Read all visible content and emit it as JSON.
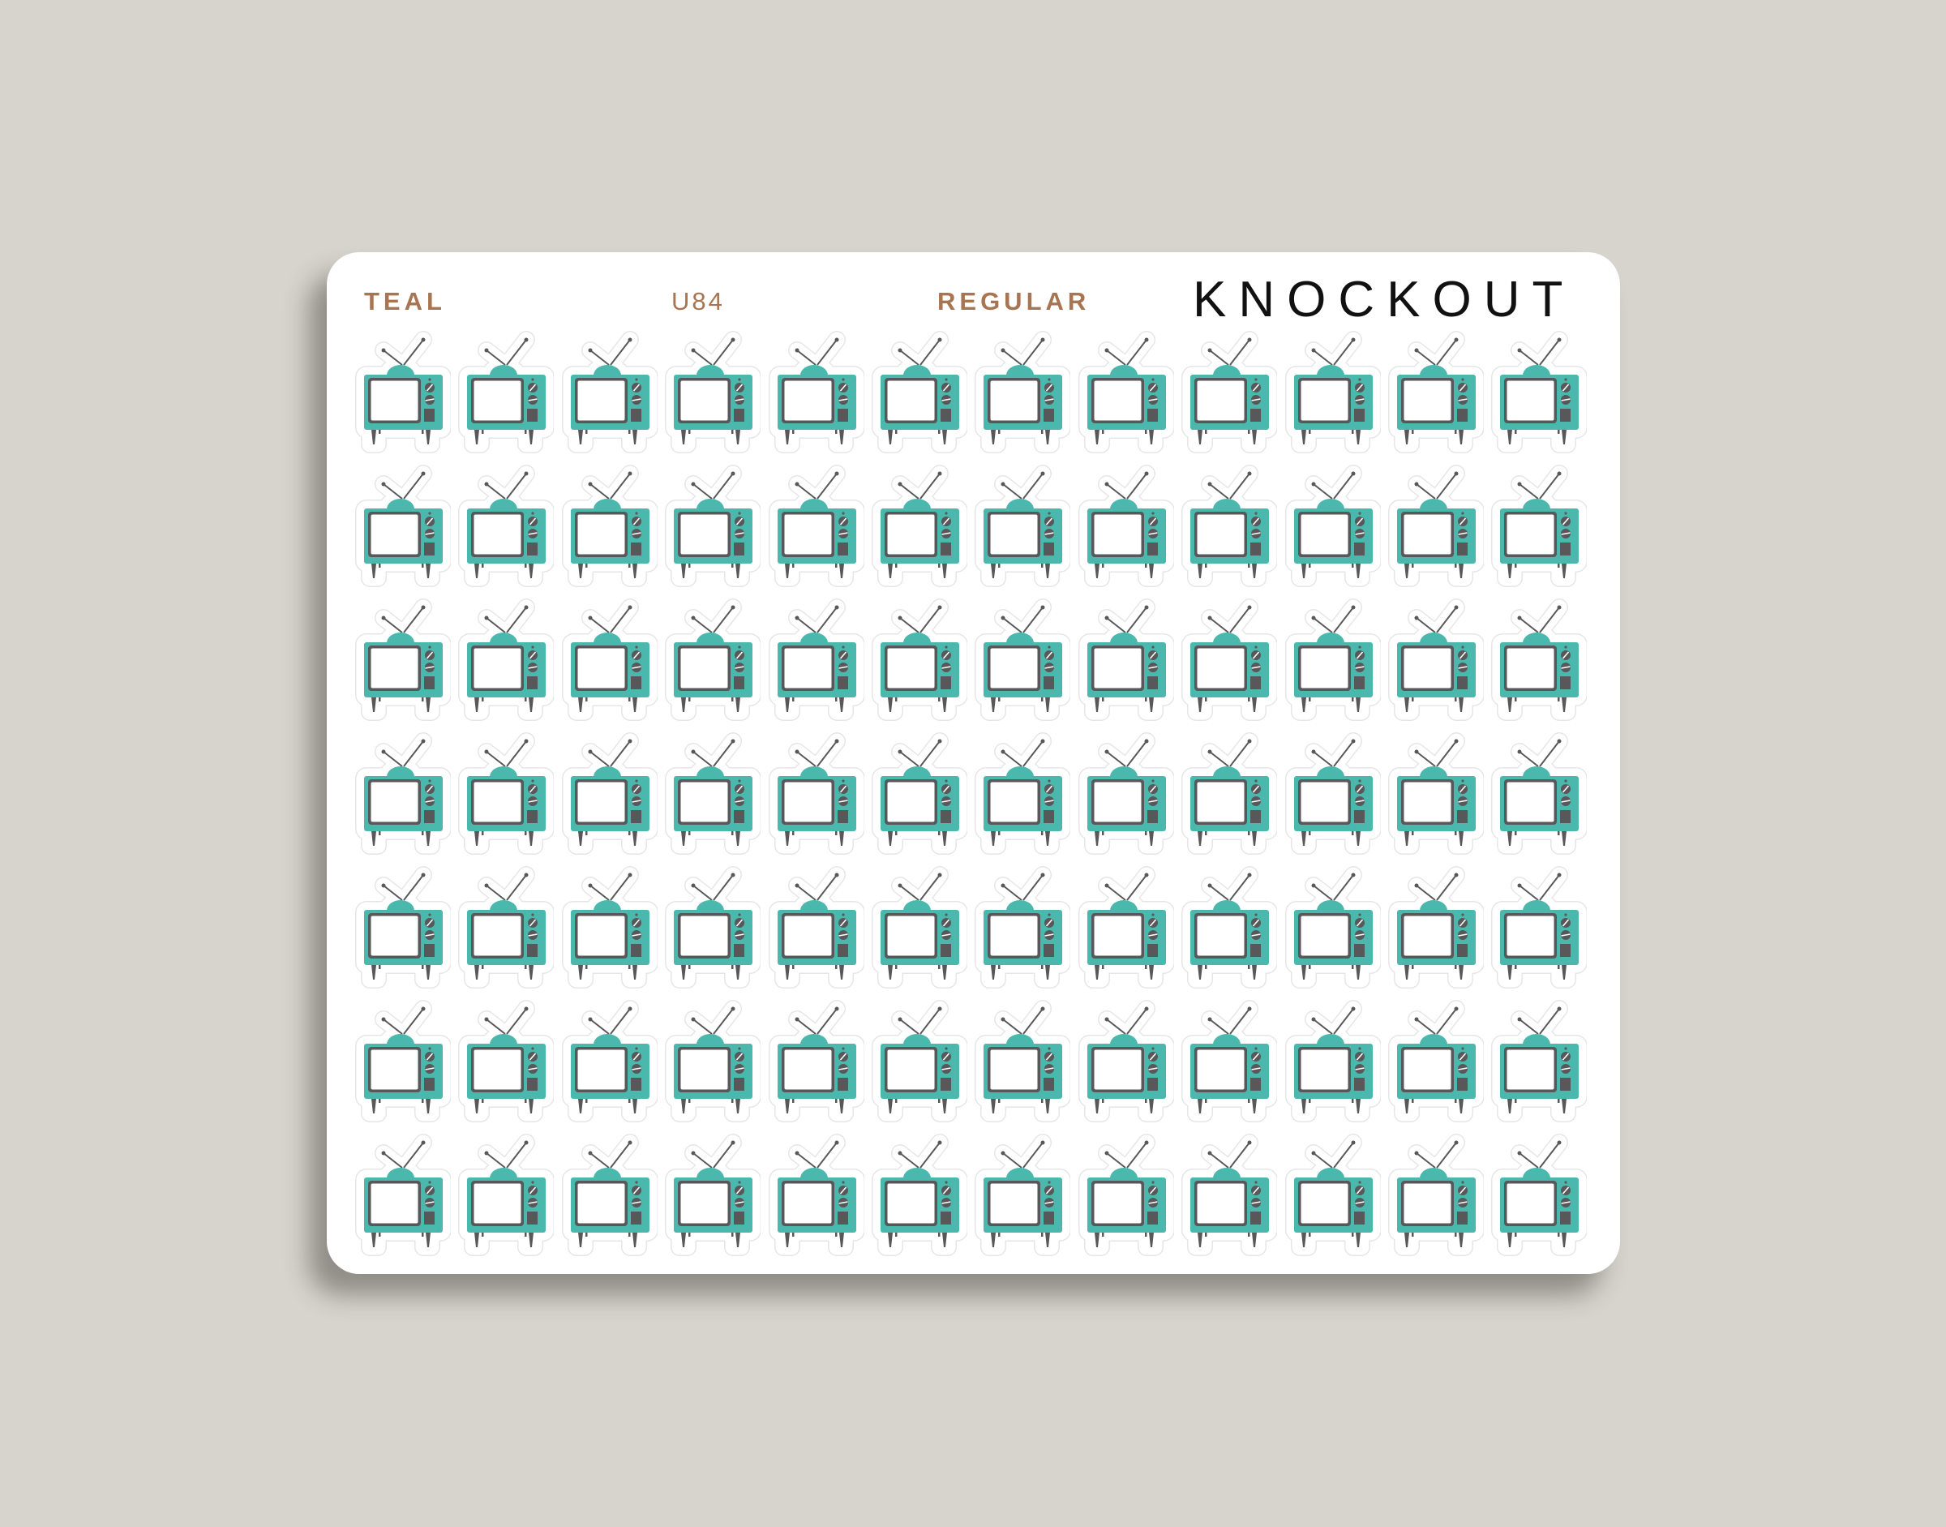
{
  "sheet": {
    "color_name": "TEAL",
    "code": "U84",
    "size": "REGULAR",
    "brand": "KNOCKOUT"
  },
  "grid": {
    "rows": 7,
    "cols": 12,
    "icon": "retro-tv-icon"
  },
  "colors": {
    "background": "#d7d3cd",
    "teal": "#4ab8ad",
    "dark_gray": "#58585a",
    "label_brown": "#a87552"
  }
}
